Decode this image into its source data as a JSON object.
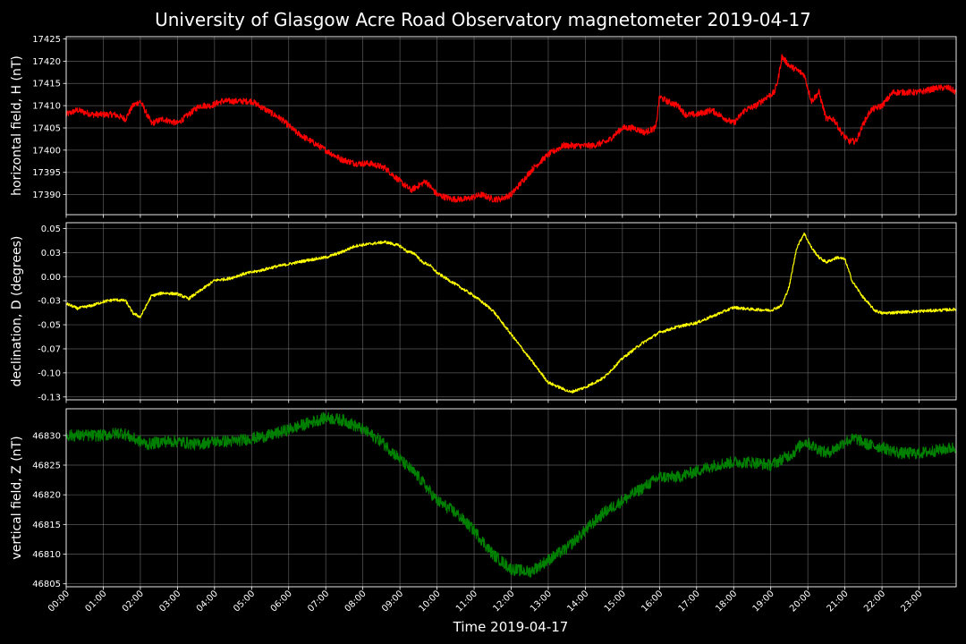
{
  "title": "University of Glasgow Acre Road Observatory magnetometer 2019-04-17",
  "xlabel": "Time 2019-04-17",
  "x_ticks": [
    "00:00",
    "01:00",
    "02:00",
    "03:00",
    "04:00",
    "05:00",
    "06:00",
    "07:00",
    "08:00",
    "09:00",
    "10:00",
    "11:00",
    "12:00",
    "13:00",
    "14:00",
    "15:00",
    "16:00",
    "17:00",
    "18:00",
    "19:00",
    "20:00",
    "21:00",
    "22:00",
    "23:00"
  ],
  "chart_data": [
    {
      "type": "line",
      "ylabel": "horizontal field, H (nT)",
      "color": "#ff0000",
      "xlim": [
        0,
        24
      ],
      "ylim": [
        17385.5,
        17425.5
      ],
      "y_ticks": [
        17390,
        17395,
        17400,
        17405,
        17410,
        17415,
        17420,
        17425
      ],
      "noise": 0.7,
      "x": [
        0,
        0.3,
        0.7,
        1.0,
        1.3,
        1.6,
        1.8,
        2.0,
        2.3,
        2.6,
        3.0,
        3.3,
        3.6,
        3.9,
        4.2,
        4.6,
        5.0,
        5.4,
        5.8,
        6.2,
        6.6,
        7.0,
        7.4,
        7.8,
        8.2,
        8.6,
        9.0,
        9.3,
        9.5,
        9.7,
        10.0,
        10.4,
        10.8,
        11.2,
        11.5,
        11.7,
        12.0,
        12.3,
        12.6,
        13.0,
        13.4,
        13.8,
        14.2,
        14.6,
        15.0,
        15.3,
        15.6,
        15.9,
        16.0,
        16.2,
        16.5,
        16.7,
        17.0,
        17.4,
        17.8,
        18.0,
        18.3,
        18.6,
        18.9,
        19.1,
        19.2,
        19.3,
        19.4,
        19.5,
        19.7,
        19.9,
        20.1,
        20.3,
        20.5,
        20.7,
        20.9,
        21.1,
        21.3,
        21.5,
        21.7,
        22.0,
        22.3,
        22.6,
        23.0,
        23.5,
        23.8,
        24.0
      ],
      "y": [
        17408,
        17409,
        17408,
        17408,
        17408,
        17407,
        17410,
        17411,
        17406,
        17407,
        17406,
        17408,
        17410,
        17410,
        17411,
        17411,
        17411,
        17409,
        17407,
        17404,
        17402,
        17400,
        17398,
        17397,
        17397,
        17396,
        17393,
        17391,
        17392,
        17393,
        17390,
        17389,
        17389,
        17390,
        17389,
        17389,
        17390,
        17393,
        17396,
        17399,
        17401,
        17401,
        17401,
        17402,
        17405,
        17405,
        17404,
        17405,
        17412,
        17411,
        17410,
        17408,
        17408,
        17409,
        17407,
        17406,
        17409,
        17410,
        17412,
        17413,
        17416,
        17421,
        17420,
        17419,
        17418,
        17417,
        17411,
        17413,
        17407,
        17407,
        17404,
        17402,
        17402,
        17406,
        17409,
        17410,
        17413,
        17413,
        17413,
        17414,
        17414,
        17413
      ]
    },
    {
      "type": "line",
      "ylabel": "declination, D (degrees)",
      "color": "#ffff00",
      "xlim": [
        0,
        24
      ],
      "ylim": [
        -0.128,
        0.056
      ],
      "y_ticks": [
        -0.125,
        -0.1,
        -0.075,
        -0.05,
        -0.025,
        0.0,
        0.025,
        0.05
      ],
      "noise": 0.0015,
      "x": [
        0,
        0.3,
        0.7,
        1.0,
        1.3,
        1.6,
        1.8,
        2.0,
        2.3,
        2.6,
        3.0,
        3.3,
        3.6,
        4.0,
        4.4,
        4.8,
        5.2,
        5.6,
        6.0,
        6.5,
        7.0,
        7.4,
        7.8,
        8.2,
        8.6,
        9.0,
        9.2,
        9.4,
        9.6,
        9.8,
        10.0,
        10.5,
        11.0,
        11.5,
        12.0,
        12.5,
        13.0,
        13.6,
        14.0,
        14.5,
        15.0,
        15.5,
        16.0,
        16.5,
        17.0,
        17.5,
        18.0,
        18.5,
        19.0,
        19.3,
        19.5,
        19.7,
        19.9,
        20.1,
        20.3,
        20.5,
        20.8,
        21.0,
        21.2,
        21.5,
        21.8,
        22.0,
        22.5,
        23.0,
        23.5,
        24.0
      ],
      "y": [
        -0.028,
        -0.033,
        -0.03,
        -0.026,
        -0.024,
        -0.025,
        -0.038,
        -0.042,
        -0.02,
        -0.017,
        -0.018,
        -0.023,
        -0.015,
        -0.004,
        -0.002,
        0.003,
        0.006,
        0.01,
        0.013,
        0.017,
        0.02,
        0.025,
        0.032,
        0.034,
        0.036,
        0.032,
        0.026,
        0.024,
        0.015,
        0.012,
        0.004,
        -0.008,
        -0.02,
        -0.035,
        -0.06,
        -0.085,
        -0.11,
        -0.12,
        -0.115,
        -0.105,
        -0.085,
        -0.07,
        -0.058,
        -0.052,
        -0.048,
        -0.04,
        -0.032,
        -0.034,
        -0.035,
        -0.03,
        -0.01,
        0.03,
        0.045,
        0.03,
        0.02,
        0.015,
        0.02,
        0.018,
        -0.005,
        -0.022,
        -0.035,
        -0.038,
        -0.037,
        -0.036,
        -0.035,
        -0.034
      ]
    },
    {
      "type": "line",
      "ylabel": "vertical field, Z (nT)",
      "color": "#008000",
      "xlim": [
        0,
        24
      ],
      "ylim": [
        46804.5,
        46834.5
      ],
      "y_ticks": [
        46805,
        46810,
        46815,
        46820,
        46825,
        46830
      ],
      "noise": 1.0,
      "x": [
        0,
        0.5,
        1.0,
        1.5,
        1.8,
        2.2,
        2.6,
        3.0,
        3.5,
        4.0,
        4.5,
        5.0,
        5.5,
        6.0,
        6.5,
        7.0,
        7.5,
        8.0,
        8.5,
        9.0,
        9.5,
        10.0,
        10.5,
        11.0,
        11.5,
        12.0,
        12.5,
        13.0,
        13.5,
        14.0,
        14.5,
        15.0,
        15.5,
        16.0,
        16.5,
        17.0,
        17.5,
        18.0,
        18.5,
        19.0,
        19.3,
        19.6,
        19.9,
        20.2,
        20.5,
        20.8,
        21.0,
        21.3,
        21.6,
        22.0,
        22.5,
        23.0,
        23.5,
        24.0
      ],
      "y": [
        46830,
        46830,
        46830,
        46830.5,
        46829.5,
        46828.5,
        46829,
        46829,
        46828.5,
        46829,
        46829,
        46829.5,
        46830,
        46831,
        46832,
        46833,
        46832.5,
        46831,
        46829,
        46826,
        46823,
        46819,
        46817,
        46814,
        46810,
        46807.5,
        46807,
        46809,
        46811,
        46814,
        46817,
        46819,
        46821,
        46823,
        46823,
        46824,
        46825,
        46825.5,
        46825.5,
        46825,
        46826,
        46827,
        46829,
        46828,
        46827,
        46828,
        46829,
        46829.5,
        46828.5,
        46828,
        46827,
        46827,
        46827.5,
        46828
      ]
    }
  ]
}
